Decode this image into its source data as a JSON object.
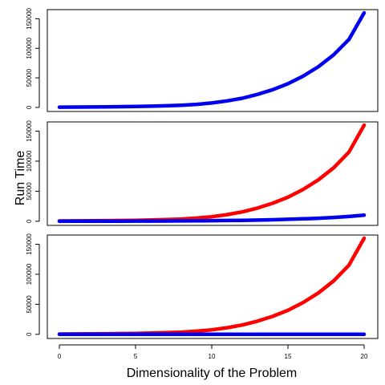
{
  "chart_data": [
    {
      "type": "line",
      "xlabel": "",
      "ylabel": "",
      "xlim": [
        0,
        20
      ],
      "ylim": [
        0,
        160000
      ],
      "yticks": [
        0,
        50000,
        100000,
        150000
      ],
      "grid": false,
      "series": [
        {
          "color": "#0000ee",
          "x": [
            0,
            1,
            2,
            3,
            4,
            5,
            6,
            7,
            8,
            9,
            10,
            11,
            12,
            13,
            14,
            15,
            16,
            17,
            18,
            19,
            20
          ],
          "y": [
            500,
            600,
            750,
            950,
            1200,
            1500,
            2000,
            2700,
            3700,
            5200,
            7500,
            11000,
            15500,
            22000,
            30000,
            40000,
            53000,
            69000,
            89000,
            115000,
            160000
          ]
        }
      ]
    },
    {
      "type": "line",
      "xlabel": "",
      "ylabel": "",
      "xlim": [
        0,
        20
      ],
      "ylim": [
        0,
        160000
      ],
      "yticks": [
        0,
        50000,
        100000,
        150000
      ],
      "grid": false,
      "series": [
        {
          "color": "#ff0000",
          "x": [
            0,
            1,
            2,
            3,
            4,
            5,
            6,
            7,
            8,
            9,
            10,
            11,
            12,
            13,
            14,
            15,
            16,
            17,
            18,
            19,
            20
          ],
          "y": [
            500,
            600,
            750,
            950,
            1200,
            1500,
            2000,
            2700,
            3700,
            5200,
            7500,
            11000,
            15500,
            22000,
            30000,
            40000,
            53000,
            69000,
            89000,
            115000,
            160000
          ]
        },
        {
          "color": "#0000ee",
          "x": [
            0,
            1,
            2,
            3,
            4,
            5,
            6,
            7,
            8,
            9,
            10,
            11,
            12,
            13,
            14,
            15,
            16,
            17,
            18,
            19,
            20
          ],
          "y": [
            100,
            120,
            150,
            190,
            240,
            300,
            380,
            480,
            600,
            760,
            960,
            1200,
            1500,
            1900,
            2500,
            3200,
            4000,
            5000,
            6300,
            7900,
            10000
          ]
        }
      ]
    },
    {
      "type": "line",
      "xlabel": "Dimensionality of the Problem",
      "ylabel": "",
      "xlim": [
        0,
        20
      ],
      "ylim": [
        0,
        160000
      ],
      "yticks": [
        0,
        50000,
        100000,
        150000
      ],
      "xticks": [
        0,
        5,
        10,
        15,
        20
      ],
      "grid": false,
      "series": [
        {
          "color": "#ff0000",
          "x": [
            0,
            1,
            2,
            3,
            4,
            5,
            6,
            7,
            8,
            9,
            10,
            11,
            12,
            13,
            14,
            15,
            16,
            17,
            18,
            19,
            20
          ],
          "y": [
            500,
            600,
            750,
            950,
            1200,
            1500,
            2000,
            2700,
            3700,
            5200,
            7500,
            11000,
            15500,
            22000,
            30000,
            40000,
            53000,
            69000,
            89000,
            115000,
            160000
          ]
        },
        {
          "color": "#0000ee",
          "x": [
            0,
            1,
            2,
            3,
            4,
            5,
            6,
            7,
            8,
            9,
            10,
            11,
            12,
            13,
            14,
            15,
            16,
            17,
            18,
            19,
            20
          ],
          "y": [
            0,
            0,
            0,
            0,
            0,
            0,
            0,
            0,
            0,
            0,
            0,
            0,
            0,
            0,
            0,
            0,
            0,
            0,
            0,
            0,
            0
          ]
        }
      ]
    }
  ],
  "shared_ylabel": "Run Time"
}
